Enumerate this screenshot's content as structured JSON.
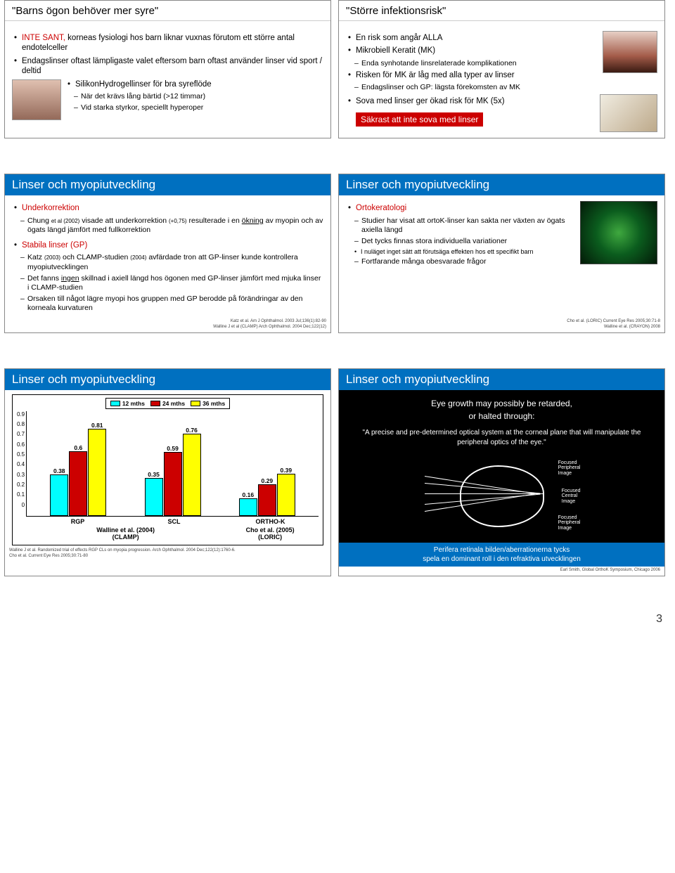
{
  "page_number": "3",
  "slide1": {
    "title": "\"Barns ögon behöver mer syre\"",
    "b1": "INTE SANT,  korneas fysiologi hos barn liknar vuxnas förutom ett större antal endotelceller",
    "b2": "Endagslinser oftast lämpligaste valet eftersom barn oftast använder linser vid sport / deltid",
    "b3": "SilikonHydrogellinser för bra syreflöde",
    "b3a": "När det krävs lång bärtid (>12 timmar)",
    "b3b": "Vid starka styrkor, speciellt hyperoper",
    "not_true": "INTE SANT,"
  },
  "slide2": {
    "title": "\"Större infektionsrisk\"",
    "b1": "En risk som angår ALLA",
    "b2": "Mikrobiell Keratit (MK)",
    "b2a": "Enda synhotande linsrelaterade komplikationen",
    "b3": "Risken för MK är låg med alla typer av linser",
    "b3a": "Endagslinser och GP: lägsta förekomsten av MK",
    "b4": "Sova med linser ger ökad risk för MK (5x)",
    "box": "Säkrast att inte sova med linser"
  },
  "slide3": {
    "title": "Linser och myopiutveckling",
    "h1": "Underkorrektion",
    "h1a_pre": "Chung ",
    "h1a_small1": "et al (2002)",
    "h1a_mid": " visade att underkorrektion ",
    "h1a_small2": "(+0,75)",
    "h1a_post": " resulterade i en ökning av myopin och av ögats längd jämfört med fullkorrektion",
    "h2": "Stabila linser (GP)",
    "h2a_pre": "Katz ",
    "h2a_small1": "(2003)",
    "h2a_mid": " och CLAMP-studien ",
    "h2a_small2": "(2004)",
    "h2a_post": " avfärdade tron att GP-linser kunde kontrollera myopiutvecklingen",
    "h2b": "Det fanns ingen skillnad i axiell längd hos ögonen med GP-linser jämfört med mjuka linser i CLAMP-studien",
    "h2c": "Orsaken till något lägre myopi hos gruppen med GP berodde på förändringar av den korneala kurvaturen",
    "cit1": "Katz et al. Am J Ophthalmol. 2003 Jul;136(1):82-90",
    "cit2": "Walline J et al (CLAMP) Arch Ophthalmol. 2004 Dec;122(12)"
  },
  "slide4": {
    "title": "Linser och myopiutveckling",
    "h1": "Ortokeratologi",
    "h1a": "Studier har visat att ortoK-linser kan sakta ner växten av ögats axiella längd",
    "h1b": "Det tycks finnas stora individuella variationer",
    "h1b1": "I nuläget inget sätt att förutsäga effekten hos ett specifikt barn",
    "h1c": "Fortfarande många obesvarade frågor",
    "cit1": "Cho et al. (LORIC) Current Eye Res 2005;30:71-8",
    "cit2": "Walline et al. (CRAYON) 2008"
  },
  "slide5": {
    "title": "Linser och myopiutveckling",
    "chart": {
      "type": "bar",
      "legend": [
        "12 mths",
        "24 mths",
        "36 mths"
      ],
      "legend_colors": [
        "#00ffff",
        "#cc0000",
        "#ffff00"
      ],
      "yticks": [
        "0.9",
        "0.8",
        "0.7",
        "0.6",
        "0.5",
        "0.4",
        "0.3",
        "0.2",
        "0.1",
        "0"
      ],
      "ymax": 0.9,
      "groups": [
        {
          "name": "RGP",
          "values": [
            0.38,
            0.6,
            0.81
          ]
        },
        {
          "name": "SCL",
          "values": [
            0.35,
            0.59,
            0.76
          ]
        },
        {
          "name": "ORTHO-K",
          "values": [
            0.16,
            0.29,
            0.39
          ]
        }
      ],
      "caption_left": "Walline et al. (2004)\n(CLAMP)",
      "caption_right": "Cho et al. (2005)\n(LORIC)"
    },
    "cit1": "Walline J et al.  Randomized trial of effects RGP CLs on myopia progression. Arch Ophthalmol. 2004 Dec;122(12):1760-6.",
    "cit2": "Cho et al. Current Eye Res 2005;30:71-80"
  },
  "slide6": {
    "title": "Linser och myopiutveckling",
    "line1": "Eye growth may possibly be retarded,",
    "line2": "or halted through:",
    "quote": "\"A precise and pre-determined optical system at the corneal plane that will manipulate the peripheral optics of the eye.\"",
    "fl1": "Focused\nPeripheral\nImage",
    "fl2": "Focused\nCentral\nImage",
    "fl3": "Focused\nPeripheral\nImage",
    "caption": "Perifera retinala bilden/aberrationerna tycks\nspela en dominant roll i den refraktiva utvecklingen",
    "cit": "Earl Smith, Global OrthoK Symposium, Chicago 2006"
  },
  "colors": {
    "header": "#0070c0",
    "red": "#cc0000",
    "cyan": "#00ffff",
    "yellow": "#ffff00"
  }
}
